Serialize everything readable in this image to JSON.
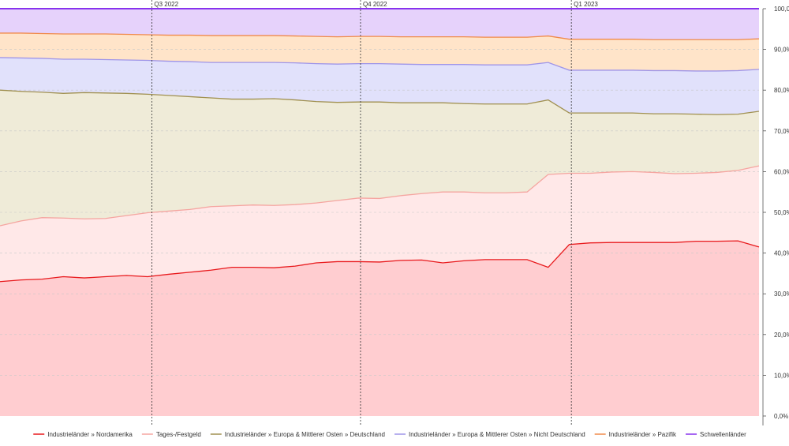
{
  "chart_data": {
    "type": "area",
    "stacked": true,
    "percent": true,
    "ylim": [
      0,
      100
    ],
    "yticks": [
      "0,0%",
      "10,0%",
      "20,0%",
      "30,0%",
      "40,0%",
      "50,0%",
      "60,0%",
      "70,0%",
      "80,0%",
      "90,0%",
      "100,0%"
    ],
    "ytick_values": [
      0,
      10,
      20,
      30,
      40,
      50,
      60,
      70,
      80,
      90,
      100
    ],
    "grid": true,
    "legend_position": "bottom",
    "x_count": 37,
    "quarter_markers": [
      {
        "label": "Q3 2022",
        "index": 7.2
      },
      {
        "label": "Q4 2022",
        "index": 17.1
      },
      {
        "label": "Q1 2023",
        "index": 27.1
      }
    ],
    "series": [
      {
        "name": "Industrieländer » Nordamerika",
        "color": "#e8191c",
        "fill": "#ffcdd0",
        "cumulative": [
          33.0,
          33.4,
          33.6,
          34.2,
          33.9,
          34.2,
          34.5,
          34.2,
          34.8,
          35.3,
          35.8,
          36.5,
          36.5,
          36.4,
          36.8,
          37.6,
          37.9,
          37.9,
          37.8,
          38.2,
          38.3,
          37.6,
          38.1,
          38.4,
          38.4,
          38.4,
          36.5,
          42.1,
          42.5,
          42.6,
          42.6,
          42.6,
          42.6,
          42.9,
          42.9,
          43.0,
          41.5
        ]
      },
      {
        "name": "Tages-/Festgeld",
        "color": "#f5a5a0",
        "fill": "#ffe8e8",
        "cumulative": [
          46.7,
          47.9,
          48.7,
          48.6,
          48.4,
          48.5,
          49.2,
          49.9,
          50.3,
          50.7,
          51.4,
          51.6,
          51.8,
          51.7,
          51.9,
          52.3,
          52.9,
          53.5,
          53.4,
          54.1,
          54.6,
          55.0,
          55.0,
          54.8,
          54.8,
          55.0,
          59.3,
          59.6,
          59.6,
          59.9,
          60.0,
          59.8,
          59.5,
          59.6,
          59.8,
          60.3,
          61.4
        ]
      },
      {
        "name": "Industrieländer » Europa & Mittlerer Osten » Deutschland",
        "color": "#a09050",
        "fill": "#efebd8",
        "cumulative": [
          80.0,
          79.7,
          79.5,
          79.2,
          79.4,
          79.3,
          79.2,
          79.0,
          78.7,
          78.4,
          78.1,
          77.8,
          77.8,
          77.9,
          77.6,
          77.2,
          77.0,
          77.1,
          77.1,
          76.9,
          76.9,
          76.9,
          76.7,
          76.6,
          76.6,
          76.6,
          77.6,
          74.4,
          74.4,
          74.4,
          74.4,
          74.2,
          74.2,
          74.1,
          74.0,
          74.1,
          74.8
        ]
      },
      {
        "name": "Industrieländer » Europa & Mittlerer Osten » Nicht Deutschland",
        "color": "#9f95e8",
        "fill": "#e1e1fb",
        "cumulative": [
          88.0,
          87.9,
          87.8,
          87.6,
          87.6,
          87.5,
          87.4,
          87.3,
          87.1,
          87.0,
          86.8,
          86.8,
          86.8,
          86.8,
          86.7,
          86.5,
          86.4,
          86.5,
          86.5,
          86.4,
          86.3,
          86.3,
          86.3,
          86.2,
          86.2,
          86.2,
          86.8,
          84.9,
          84.9,
          84.9,
          84.9,
          84.8,
          84.8,
          84.7,
          84.7,
          84.8,
          85.1
        ]
      },
      {
        "name": "Industrieländer » Pazifik",
        "color": "#f08a4b",
        "fill": "#ffe4c9",
        "cumulative": [
          94.0,
          94.0,
          93.9,
          93.8,
          93.8,
          93.8,
          93.7,
          93.6,
          93.5,
          93.5,
          93.4,
          93.4,
          93.4,
          93.4,
          93.3,
          93.2,
          93.1,
          93.2,
          93.2,
          93.1,
          93.1,
          93.1,
          93.1,
          93.0,
          93.0,
          93.0,
          93.3,
          92.5,
          92.5,
          92.5,
          92.5,
          92.4,
          92.4,
          92.4,
          92.4,
          92.4,
          92.6
        ]
      },
      {
        "name": "Schwellenländer",
        "color": "#8833ee",
        "fill": "#e6d2fb",
        "cumulative": [
          100,
          100,
          100,
          100,
          100,
          100,
          100,
          100,
          100,
          100,
          100,
          100,
          100,
          100,
          100,
          100,
          100,
          100,
          100,
          100,
          100,
          100,
          100,
          100,
          100,
          100,
          100,
          100,
          100,
          100,
          100,
          100,
          100,
          100,
          100,
          100,
          100
        ]
      }
    ]
  }
}
